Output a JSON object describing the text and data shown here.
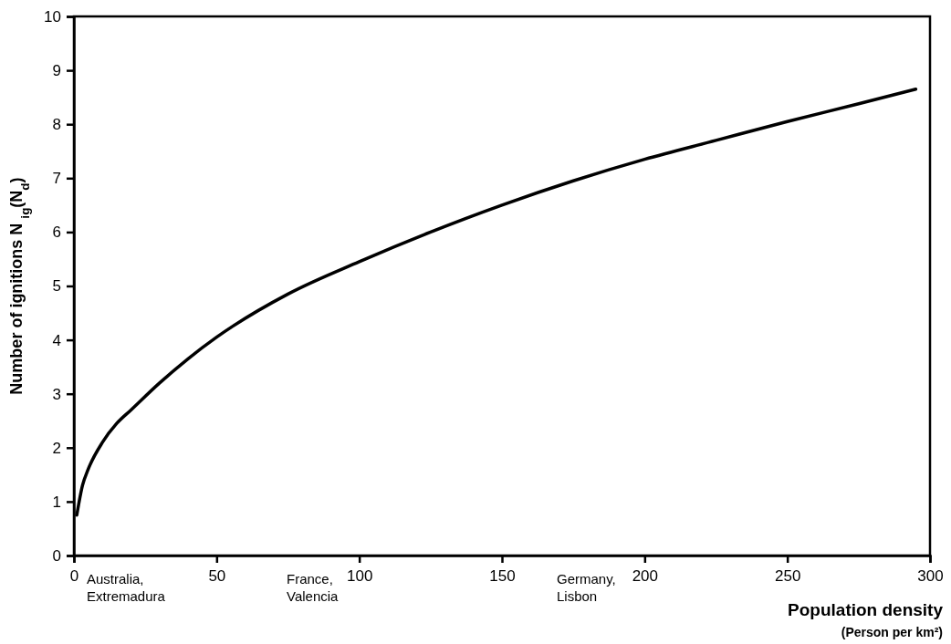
{
  "chart_data": {
    "type": "line",
    "xlabel": "Population density\n(Person per km²)",
    "ylabel": "Number of ignitions N $_{ig}$(N$_{d}$)",
    "x": [
      1,
      3,
      5,
      10,
      15,
      20,
      30,
      40,
      50,
      75,
      100,
      125,
      150,
      175,
      200,
      225,
      250,
      275,
      295
    ],
    "series": [
      {
        "color": "#000000",
        "values": [
          0.75,
          1.3,
          1.6,
          2.1,
          2.45,
          2.7,
          3.2,
          3.65,
          4.05,
          4.85,
          5.45,
          6.0,
          6.5,
          6.95,
          7.35,
          7.7,
          8.05,
          8.38,
          8.65
        ]
      }
    ],
    "xlim": [
      0,
      300
    ],
    "xticks": [
      0,
      50,
      100,
      150,
      200,
      250,
      300
    ],
    "ylim": [
      0,
      10
    ],
    "yticks": [
      0,
      1,
      2,
      3,
      4,
      5,
      6,
      7,
      8,
      9,
      10
    ],
    "annotations": [
      "Australia,\nExtremadura",
      "France,\nValencia",
      "Germany,\nLisbon"
    ],
    "grid": false,
    "marker": "none",
    "line_style": "solid"
  }
}
